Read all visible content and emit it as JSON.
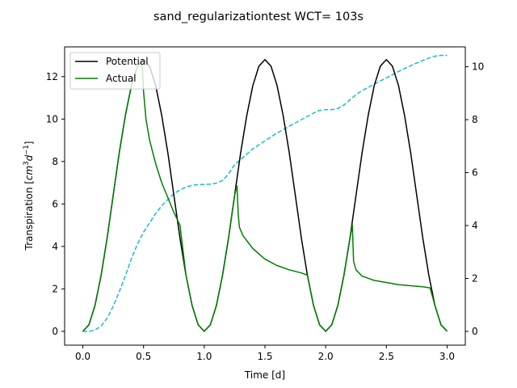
{
  "chart_data": {
    "type": "line",
    "title": "sand_regularizationtest  WCT= 103s",
    "xlabel": "Time [d]",
    "ylabel": "Transpiration [",
    "ylabel_unit": "cm",
    "ylabel_sup1": "3",
    "ylabel_d": "d",
    "ylabel_sup2": "−1",
    "ylabel_close": "]",
    "xlim": [
      -0.15,
      3.15
    ],
    "ylim_left": [
      -0.65,
      13.4
    ],
    "ylim_right": [
      -0.52,
      10.75
    ],
    "xticks": [
      0.0,
      0.5,
      1.0,
      1.5,
      2.0,
      2.5,
      3.0
    ],
    "xtick_labels": [
      "0.0",
      "0.5",
      "1.0",
      "1.5",
      "2.0",
      "2.5",
      "3.0"
    ],
    "yticks_left": [
      0,
      2,
      4,
      6,
      8,
      10,
      12
    ],
    "ytick_labels_left": [
      "0",
      "2",
      "4",
      "6",
      "8",
      "10",
      "12"
    ],
    "yticks_right": [
      0,
      2,
      4,
      6,
      8,
      10
    ],
    "ytick_labels_right": [
      "0",
      "2",
      "4",
      "6",
      "8",
      "10"
    ],
    "legend_placement": "top-left",
    "grid": false,
    "series": [
      {
        "name": "Potential",
        "axis": "left",
        "color": "#000000",
        "style": "solid",
        "points": [
          [
            0.0,
            0.0
          ],
          [
            0.05,
            0.31
          ],
          [
            0.1,
            1.22
          ],
          [
            0.15,
            2.63
          ],
          [
            0.2,
            4.39
          ],
          [
            0.25,
            6.4
          ],
          [
            0.3,
            8.41
          ],
          [
            0.35,
            10.17
          ],
          [
            0.4,
            11.58
          ],
          [
            0.45,
            12.49
          ],
          [
            0.5,
            12.8
          ],
          [
            0.55,
            12.49
          ],
          [
            0.6,
            11.58
          ],
          [
            0.65,
            10.17
          ],
          [
            0.7,
            8.41
          ],
          [
            0.75,
            6.4
          ],
          [
            0.8,
            4.39
          ],
          [
            0.85,
            2.63
          ],
          [
            0.9,
            1.22
          ],
          [
            0.95,
            0.31
          ],
          [
            1.0,
            0.0
          ],
          [
            1.05,
            0.31
          ],
          [
            1.1,
            1.22
          ],
          [
            1.15,
            2.63
          ],
          [
            1.2,
            4.39
          ],
          [
            1.25,
            6.4
          ],
          [
            1.3,
            8.41
          ],
          [
            1.35,
            10.17
          ],
          [
            1.4,
            11.58
          ],
          [
            1.45,
            12.49
          ],
          [
            1.5,
            12.8
          ],
          [
            1.55,
            12.49
          ],
          [
            1.6,
            11.58
          ],
          [
            1.65,
            10.17
          ],
          [
            1.7,
            8.41
          ],
          [
            1.75,
            6.4
          ],
          [
            1.8,
            4.39
          ],
          [
            1.85,
            2.63
          ],
          [
            1.9,
            1.22
          ],
          [
            1.95,
            0.31
          ],
          [
            2.0,
            0.0
          ],
          [
            2.05,
            0.31
          ],
          [
            2.1,
            1.22
          ],
          [
            2.15,
            2.63
          ],
          [
            2.2,
            4.39
          ],
          [
            2.25,
            6.4
          ],
          [
            2.3,
            8.41
          ],
          [
            2.35,
            10.17
          ],
          [
            2.4,
            11.58
          ],
          [
            2.45,
            12.49
          ],
          [
            2.5,
            12.8
          ],
          [
            2.55,
            12.49
          ],
          [
            2.6,
            11.58
          ],
          [
            2.65,
            10.17
          ],
          [
            2.7,
            8.41
          ],
          [
            2.75,
            6.4
          ],
          [
            2.8,
            4.39
          ],
          [
            2.85,
            2.63
          ],
          [
            2.9,
            1.22
          ],
          [
            2.95,
            0.31
          ],
          [
            3.0,
            0.0
          ]
        ]
      },
      {
        "name": "Actual",
        "axis": "left",
        "color": "#008000",
        "style": "solid",
        "points": [
          [
            0.0,
            0.0
          ],
          [
            0.05,
            0.31
          ],
          [
            0.1,
            1.22
          ],
          [
            0.15,
            2.63
          ],
          [
            0.2,
            4.39
          ],
          [
            0.25,
            6.4
          ],
          [
            0.3,
            8.41
          ],
          [
            0.35,
            10.17
          ],
          [
            0.4,
            11.58
          ],
          [
            0.45,
            12.49
          ],
          [
            0.48,
            12.75
          ],
          [
            0.49,
            12.4
          ],
          [
            0.5,
            11.3
          ],
          [
            0.52,
            10.0
          ],
          [
            0.55,
            9.0
          ],
          [
            0.6,
            7.9
          ],
          [
            0.65,
            7.0
          ],
          [
            0.7,
            6.3
          ],
          [
            0.75,
            5.6
          ],
          [
            0.8,
            5.0
          ],
          [
            0.85,
            2.63
          ],
          [
            0.9,
            1.22
          ],
          [
            0.95,
            0.31
          ],
          [
            1.0,
            0.0
          ],
          [
            1.05,
            0.31
          ],
          [
            1.1,
            1.22
          ],
          [
            1.15,
            2.63
          ],
          [
            1.2,
            4.39
          ],
          [
            1.25,
            6.4
          ],
          [
            1.27,
            6.85
          ],
          [
            1.28,
            5.5
          ],
          [
            1.29,
            4.9
          ],
          [
            1.32,
            4.5
          ],
          [
            1.4,
            3.9
          ],
          [
            1.5,
            3.4
          ],
          [
            1.6,
            3.1
          ],
          [
            1.7,
            2.9
          ],
          [
            1.8,
            2.75
          ],
          [
            1.85,
            2.65
          ],
          [
            1.9,
            1.22
          ],
          [
            1.95,
            0.31
          ],
          [
            2.0,
            0.0
          ],
          [
            2.05,
            0.31
          ],
          [
            2.1,
            1.22
          ],
          [
            2.15,
            2.63
          ],
          [
            2.2,
            4.39
          ],
          [
            2.22,
            5.0
          ],
          [
            2.23,
            3.3
          ],
          [
            2.25,
            2.9
          ],
          [
            2.3,
            2.6
          ],
          [
            2.4,
            2.4
          ],
          [
            2.5,
            2.3
          ],
          [
            2.6,
            2.2
          ],
          [
            2.7,
            2.15
          ],
          [
            2.8,
            2.1
          ],
          [
            2.86,
            2.05
          ],
          [
            2.9,
            1.22
          ],
          [
            2.95,
            0.31
          ],
          [
            3.0,
            0.0
          ]
        ]
      },
      {
        "name": "",
        "axis": "right",
        "color": "#17becf",
        "style": "dashed",
        "points": [
          [
            0.0,
            0.0
          ],
          [
            0.05,
            0.0
          ],
          [
            0.1,
            0.05
          ],
          [
            0.15,
            0.2
          ],
          [
            0.2,
            0.5
          ],
          [
            0.25,
            0.95
          ],
          [
            0.3,
            1.5
          ],
          [
            0.35,
            2.1
          ],
          [
            0.4,
            2.75
          ],
          [
            0.45,
            3.3
          ],
          [
            0.5,
            3.75
          ],
          [
            0.55,
            4.1
          ],
          [
            0.6,
            4.45
          ],
          [
            0.65,
            4.75
          ],
          [
            0.7,
            4.98
          ],
          [
            0.75,
            5.2
          ],
          [
            0.8,
            5.35
          ],
          [
            0.85,
            5.45
          ],
          [
            0.9,
            5.52
          ],
          [
            0.95,
            5.55
          ],
          [
            1.0,
            5.55
          ],
          [
            1.05,
            5.56
          ],
          [
            1.1,
            5.6
          ],
          [
            1.15,
            5.7
          ],
          [
            1.2,
            5.95
          ],
          [
            1.25,
            6.3
          ],
          [
            1.3,
            6.5
          ],
          [
            1.35,
            6.7
          ],
          [
            1.4,
            6.9
          ],
          [
            1.45,
            7.05
          ],
          [
            1.5,
            7.2
          ],
          [
            1.55,
            7.35
          ],
          [
            1.6,
            7.5
          ],
          [
            1.65,
            7.62
          ],
          [
            1.7,
            7.75
          ],
          [
            1.75,
            7.88
          ],
          [
            1.8,
            8.0
          ],
          [
            1.85,
            8.12
          ],
          [
            1.9,
            8.25
          ],
          [
            1.95,
            8.35
          ],
          [
            2.0,
            8.38
          ],
          [
            2.05,
            8.38
          ],
          [
            2.1,
            8.42
          ],
          [
            2.15,
            8.55
          ],
          [
            2.2,
            8.75
          ],
          [
            2.25,
            8.95
          ],
          [
            2.3,
            9.1
          ],
          [
            2.35,
            9.22
          ],
          [
            2.4,
            9.34
          ],
          [
            2.45,
            9.46
          ],
          [
            2.5,
            9.58
          ],
          [
            2.55,
            9.7
          ],
          [
            2.6,
            9.82
          ],
          [
            2.65,
            9.93
          ],
          [
            2.7,
            10.04
          ],
          [
            2.75,
            10.14
          ],
          [
            2.8,
            10.24
          ],
          [
            2.85,
            10.33
          ],
          [
            2.9,
            10.4
          ],
          [
            2.95,
            10.43
          ],
          [
            3.0,
            10.43
          ]
        ]
      }
    ]
  }
}
